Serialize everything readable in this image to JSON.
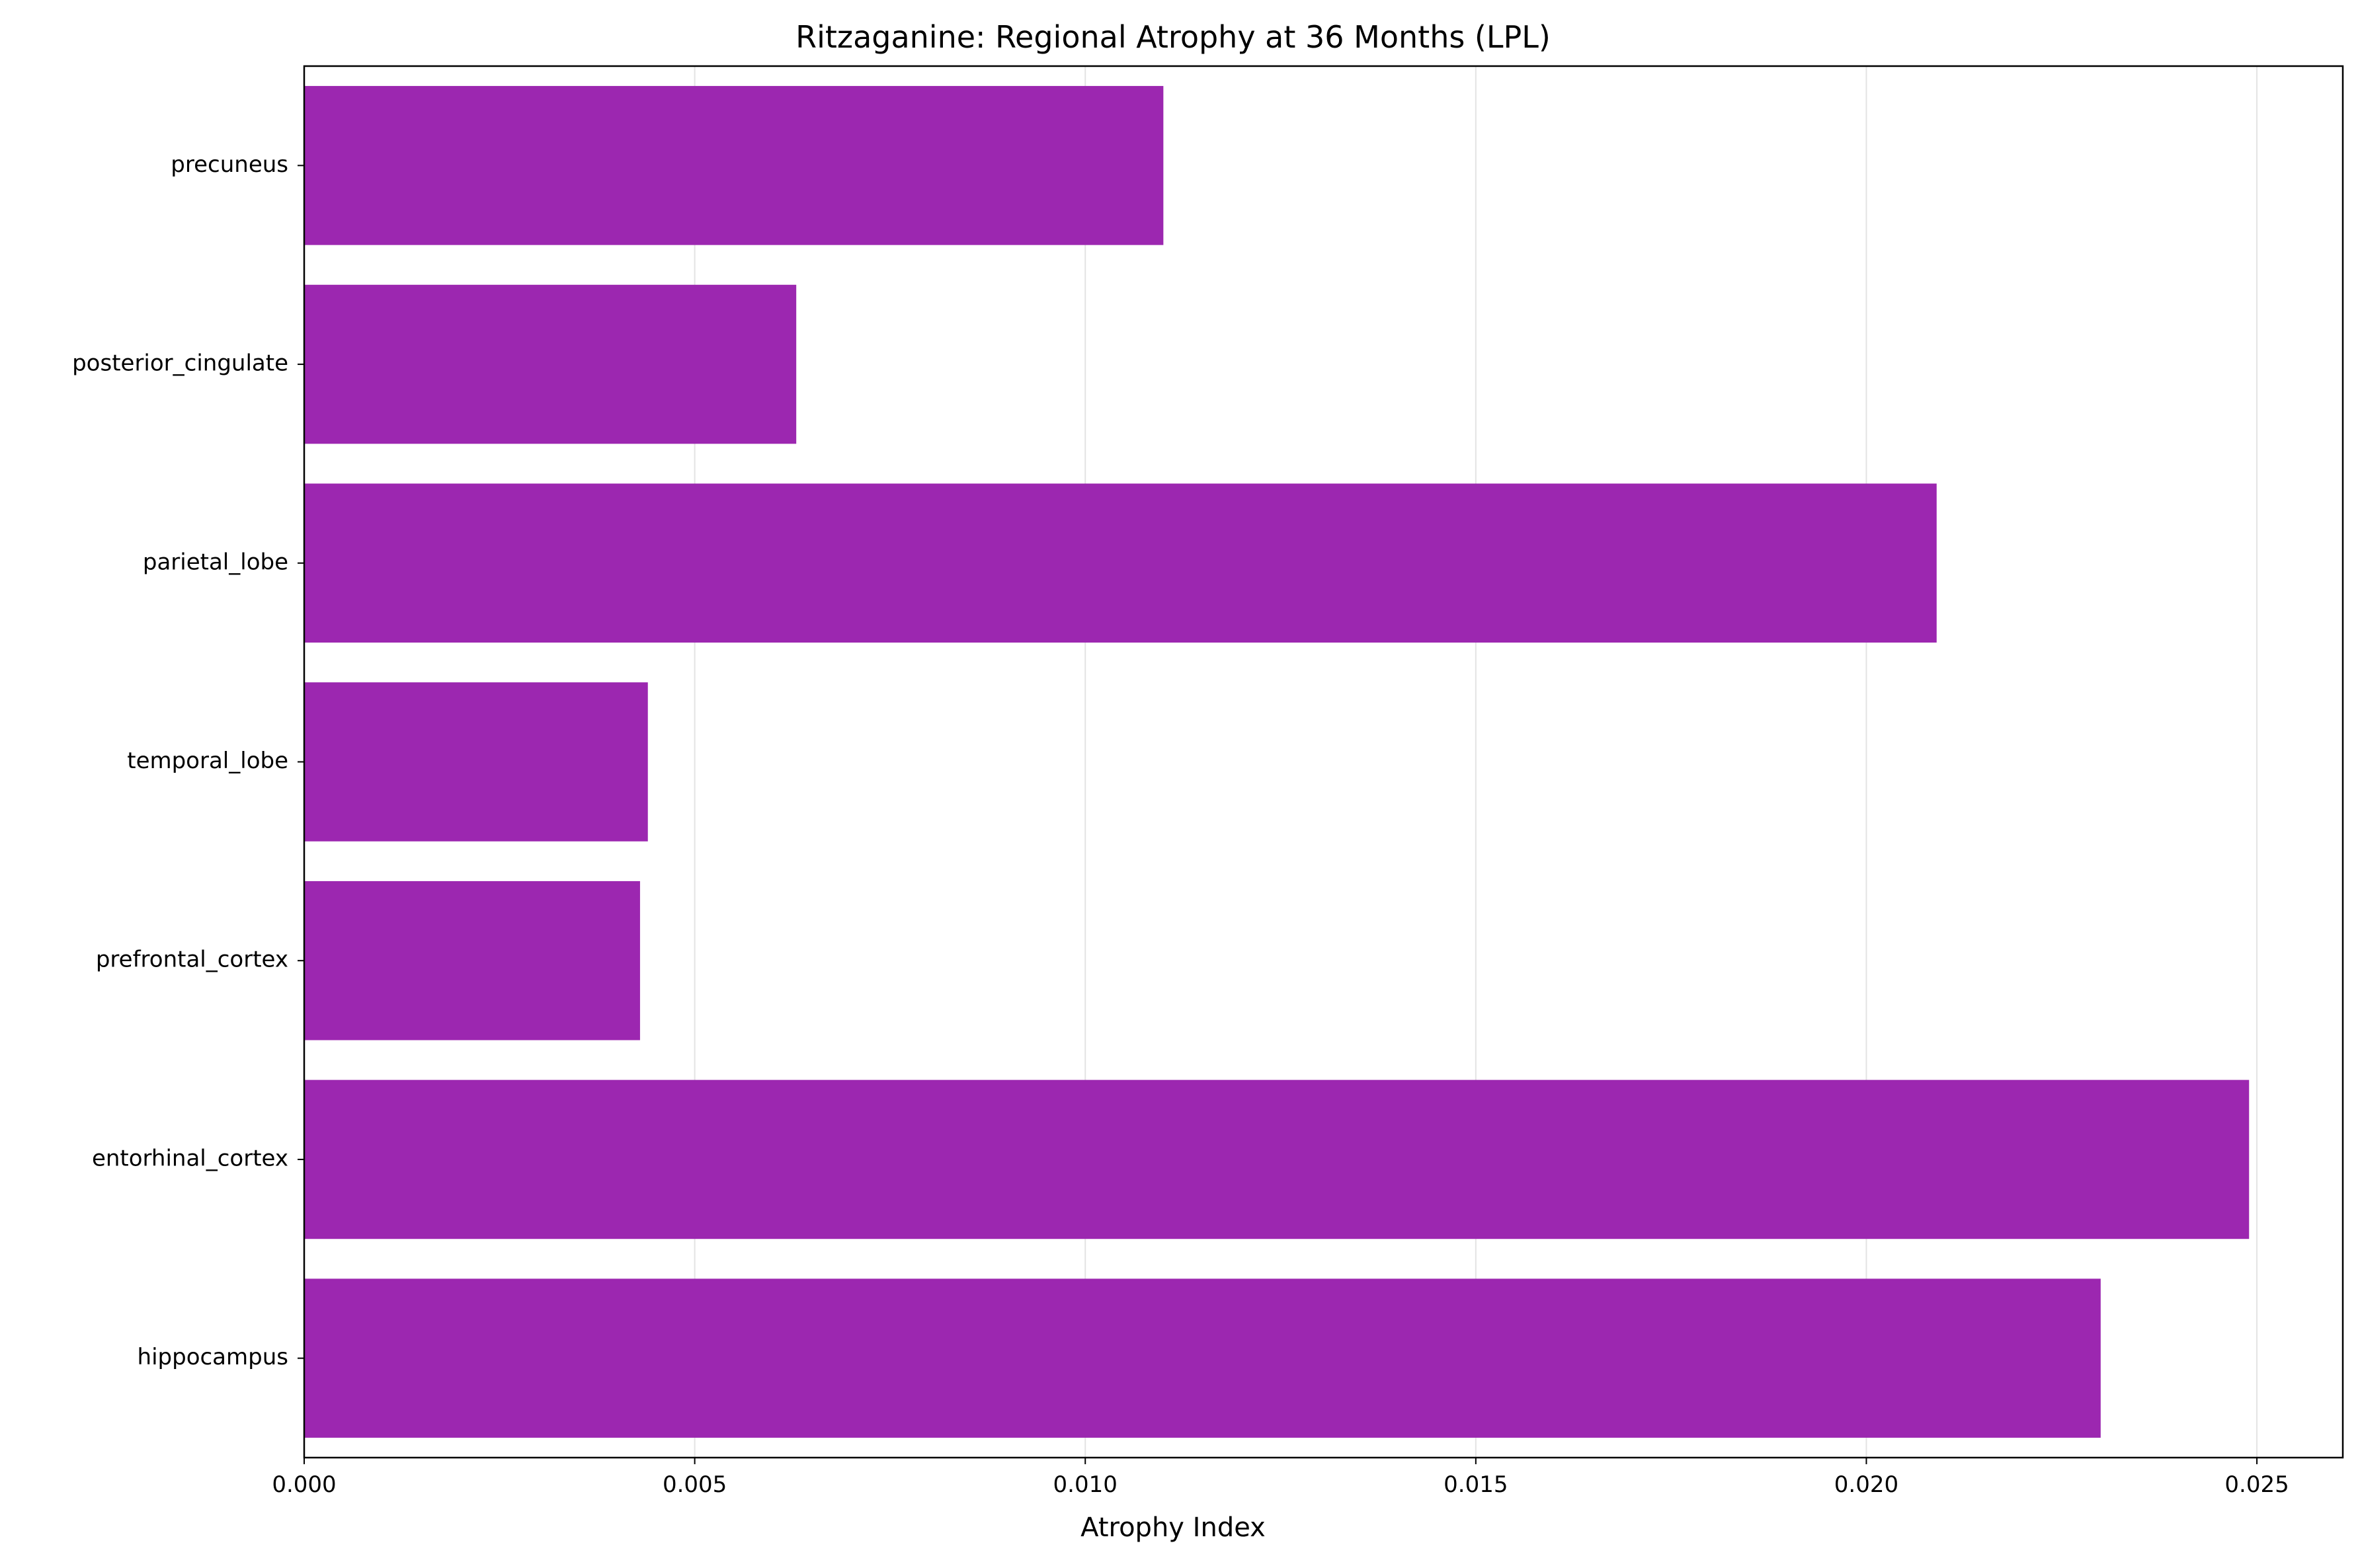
{
  "chart_data": {
    "type": "bar",
    "orientation": "horizontal",
    "title": "Ritzaganine: Regional Atrophy at 36 Months (LPL)",
    "xlabel": "Atrophy Index",
    "ylabel": "",
    "categories": [
      "hippocampus",
      "entorhinal_cortex",
      "prefrontal_cortex",
      "temporal_lobe",
      "parietal_lobe",
      "posterior_cingulate",
      "precuneus"
    ],
    "values": [
      0.023,
      0.0249,
      0.0043,
      0.0044,
      0.0209,
      0.0063,
      0.011
    ],
    "xlim": [
      0,
      0.0261
    ],
    "xticks": [
      "0.000",
      "0.005",
      "0.010",
      "0.015",
      "0.020",
      "0.025"
    ],
    "xtick_values": [
      0,
      0.005,
      0.01,
      0.015,
      0.02,
      0.025
    ],
    "grid": "vertical",
    "legend": "none",
    "colors": {
      "bar": "#9c27b0",
      "grid": "#e3e3e3",
      "axis": "#000000"
    }
  }
}
